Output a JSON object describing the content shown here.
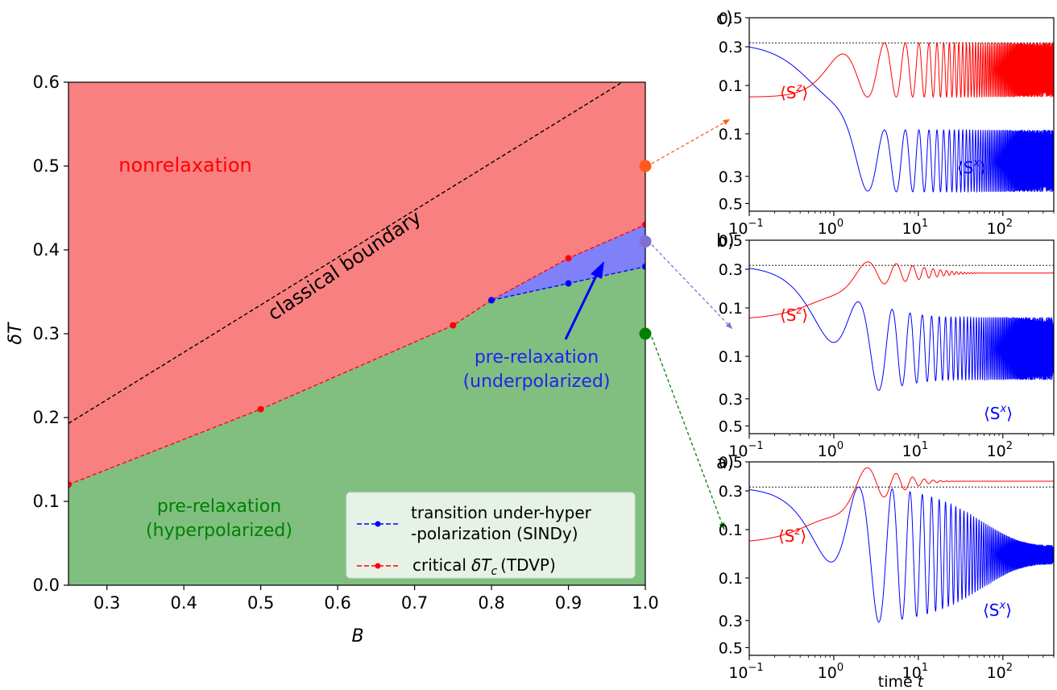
{
  "colors": {
    "nonrelax": "#f98080",
    "hyper": "#80bf80",
    "under": "#8080f9",
    "red": "#ff0000",
    "blue": "#0000ff",
    "green": "#008000",
    "orange": "#ff5a1a",
    "purple": "#8070d6",
    "black": "#000000"
  },
  "main": {
    "xlabel": "B",
    "ylabel": "δT",
    "xticks": [
      "0.3",
      "0.4",
      "0.5",
      "0.6",
      "0.7",
      "0.8",
      "0.9",
      "1.0"
    ],
    "yticks": [
      "0.0",
      "0.1",
      "0.2",
      "0.3",
      "0.4",
      "0.5",
      "0.6"
    ],
    "region_nonrelax": "nonrelaxation",
    "classical": "classical boundary",
    "under_line1": "pre-relaxation",
    "under_line2": "(underpolarized)",
    "hyper_line1": "pre-relaxation",
    "hyper_line2": "(hyperpolarized)",
    "legend": {
      "blue_line1": "transition under-hyper",
      "blue_line2": "-polarization (SINDy)",
      "red_prefix": "critical",
      "red_symbol": "δT",
      "red_sub": "c",
      "red_suffix": "(TDVP)"
    }
  },
  "insets": [
    {
      "panel": "c)",
      "sz": "⟨S",
      "sz_sup": "z",
      "sx": "⟨S",
      "sx_sup": "x",
      "close": "⟩"
    },
    {
      "panel": "b)",
      "sz": "⟨S",
      "sz_sup": "z",
      "sx": "⟨S",
      "sx_sup": "x",
      "close": "⟩"
    },
    {
      "panel": "a)",
      "sz": "⟨S",
      "sz_sup": "z",
      "sx": "⟨S",
      "sx_sup": "x",
      "close": "⟩"
    }
  ],
  "inset_yticks": [
    "0.5",
    "0.3",
    "0.1",
    "0.1",
    "0.3",
    "0.5"
  ],
  "inset_xticks": [
    {
      "base": "10",
      "exp": "−1"
    },
    {
      "base": "10",
      "exp": "0"
    },
    {
      "base": "10",
      "exp": "1"
    },
    {
      "base": "10",
      "exp": "2"
    }
  ],
  "inset_xlabel_prefix": "time",
  "inset_xlabel_var": "t",
  "chart_data": [
    {
      "type": "area",
      "xlabel": "B",
      "ylabel": "δT",
      "xlim": [
        0.25,
        1.0
      ],
      "ylim": [
        0.0,
        0.6
      ],
      "series": [
        {
          "name": "critical δT_c (TDVP)",
          "x": [
            0.25,
            0.5,
            0.75,
            0.8,
            0.9,
            1.0
          ],
          "y": [
            0.12,
            0.21,
            0.31,
            0.34,
            0.39,
            0.43
          ]
        },
        {
          "name": "transition under-hyper -polarization (SINDy)",
          "x": [
            0.8,
            0.9,
            1.0
          ],
          "y": [
            0.34,
            0.36,
            0.38
          ]
        }
      ],
      "classical_boundary": {
        "x": [
          0.25,
          0.97
        ],
        "y": [
          0.193,
          0.6
        ]
      },
      "markers": [
        {
          "x": 1.0,
          "y": 0.5,
          "color": "orange"
        },
        {
          "x": 1.0,
          "y": 0.41,
          "color": "purple"
        },
        {
          "x": 1.0,
          "y": 0.3,
          "color": "green"
        }
      ],
      "legend_position": "lower-right"
    },
    {
      "type": "line",
      "panel": "c",
      "xscale": "log",
      "xlim": [
        0.1,
        400
      ],
      "x_label": "time t",
      "series": [
        {
          "name": "⟨S^z⟩",
          "color": "red",
          "behavior": "oscillates between 0.1 and 0.38 without decay"
        },
        {
          "name": "⟨S^x⟩",
          "color": "blue",
          "behavior": "oscillates between 0.1 and -0.35 without decay"
        }
      ]
    },
    {
      "type": "line",
      "panel": "b",
      "xscale": "log",
      "xlim": [
        0.1,
        400
      ],
      "series": [
        {
          "name": "⟨S^z⟩",
          "color": "red",
          "behavior": "decays to about 0.33"
        },
        {
          "name": "⟨S^x⟩",
          "color": "blue",
          "behavior": "persistent oscillation"
        }
      ]
    },
    {
      "type": "line",
      "panel": "a",
      "xscale": "log",
      "xlim": [
        0.1,
        400
      ],
      "series": [
        {
          "name": "⟨S^z⟩",
          "color": "red",
          "behavior": "rises to about 0.4"
        },
        {
          "name": "⟨S^x⟩",
          "color": "blue",
          "behavior": "oscillation damps toward about 0.07"
        }
      ]
    }
  ]
}
